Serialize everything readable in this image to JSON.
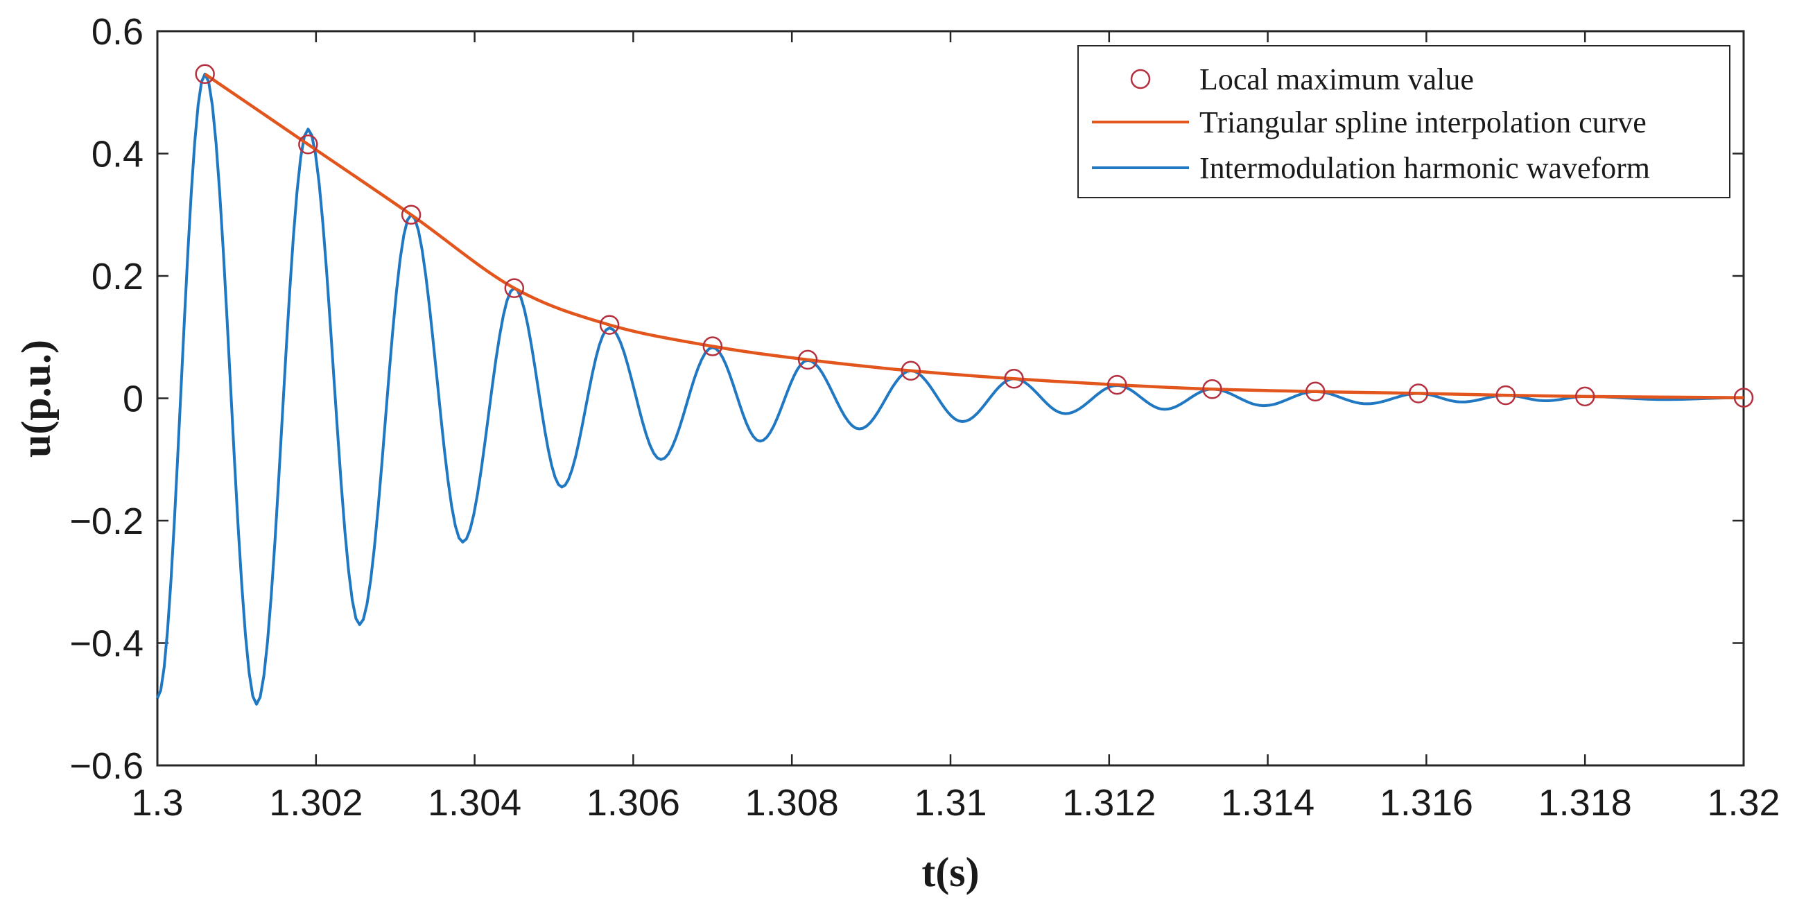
{
  "chart_data": {
    "type": "line",
    "xlabel": "t(s)",
    "ylabel": "u(p.u.)",
    "xlim": [
      1.3,
      1.32
    ],
    "ylim": [
      -0.6,
      0.6
    ],
    "x_ticks": [
      1.3,
      1.302,
      1.304,
      1.306,
      1.308,
      1.31,
      1.312,
      1.314,
      1.316,
      1.318,
      1.32
    ],
    "x_tick_labels": [
      "1.3",
      "1.302",
      "1.304",
      "1.306",
      "1.308",
      "1.31",
      "1.312",
      "1.314",
      "1.316",
      "1.318",
      "1.32"
    ],
    "y_ticks": [
      0.6,
      0.4,
      0.2,
      0,
      -0.2,
      -0.4,
      -0.6
    ],
    "y_tick_labels": [
      "0.6",
      "0.4",
      "0.2",
      "0",
      "−0.2",
      "−0.4",
      "−0.6"
    ],
    "legend_position": "top-right",
    "series": [
      {
        "name": "Local maximum value",
        "kind": "markers",
        "color": "#b5303f",
        "x": [
          1.3006,
          1.3019,
          1.3032,
          1.3045,
          1.3057,
          1.307,
          1.3082,
          1.3095,
          1.3108,
          1.3121,
          1.3133,
          1.3146,
          1.3159,
          1.317,
          1.318,
          1.32
        ],
        "y": [
          0.53,
          0.415,
          0.3,
          0.18,
          0.12,
          0.085,
          0.063,
          0.045,
          0.032,
          0.022,
          0.015,
          0.011,
          0.008,
          0.005,
          0.003,
          0.001
        ]
      },
      {
        "name": "Triangular spline interpolation curve",
        "kind": "line",
        "color": "#e2561d",
        "x": [
          1.3006,
          1.3019,
          1.3032,
          1.3045,
          1.3057,
          1.307,
          1.3082,
          1.3095,
          1.3108,
          1.3121,
          1.3133,
          1.3146,
          1.3159,
          1.317,
          1.318,
          1.32
        ],
        "y": [
          0.53,
          0.415,
          0.3,
          0.18,
          0.12,
          0.085,
          0.063,
          0.045,
          0.032,
          0.022,
          0.015,
          0.011,
          0.008,
          0.005,
          0.003,
          0.001
        ]
      },
      {
        "name": "Intermodulation harmonic waveform",
        "kind": "line",
        "color": "#1f78c1",
        "x": [
          1.3,
          1.3006,
          1.30125,
          1.3019,
          1.30255,
          1.3032,
          1.30385,
          1.3045,
          1.3051,
          1.3057,
          1.30635,
          1.307,
          1.3076,
          1.3082,
          1.30885,
          1.3095,
          1.31015,
          1.3108,
          1.31145,
          1.3121,
          1.3127,
          1.3133,
          1.31395,
          1.3146,
          1.31525,
          1.3159,
          1.31645,
          1.317,
          1.3175,
          1.318,
          1.319,
          1.32
        ],
        "y": [
          -0.49,
          0.53,
          -0.5,
          0.44,
          -0.37,
          0.3,
          -0.235,
          0.18,
          -0.145,
          0.115,
          -0.1,
          0.083,
          -0.07,
          0.062,
          -0.05,
          0.045,
          -0.038,
          0.032,
          -0.025,
          0.021,
          -0.018,
          0.015,
          -0.012,
          0.011,
          -0.009,
          0.008,
          -0.006,
          0.005,
          -0.004,
          0.003,
          -0.002,
          0.001
        ]
      }
    ]
  }
}
